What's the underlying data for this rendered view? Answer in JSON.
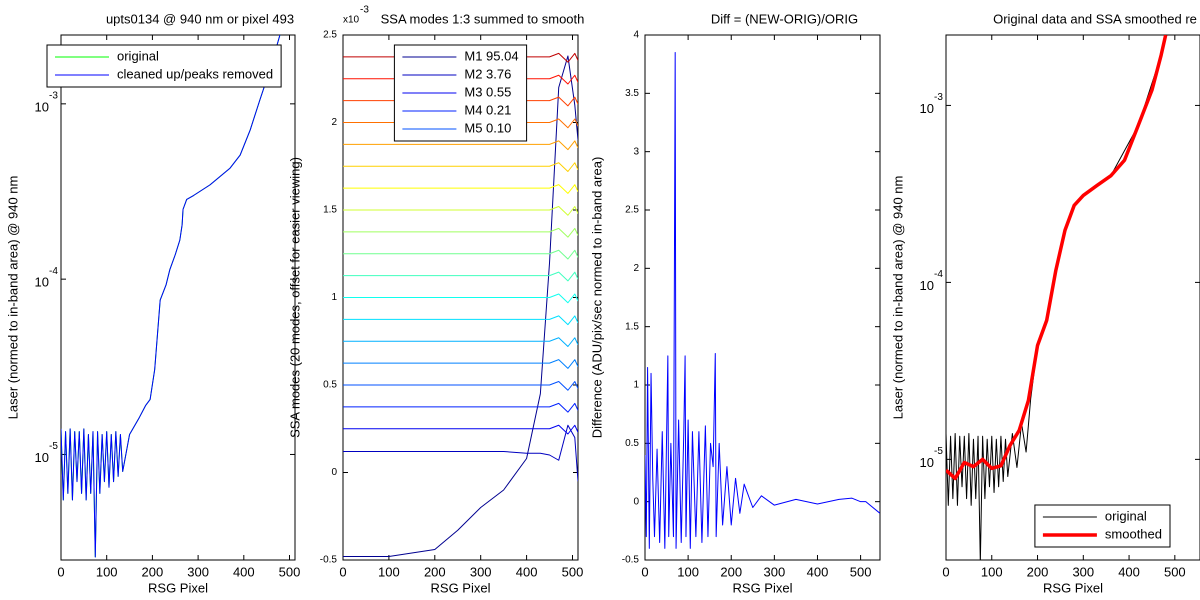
{
  "chart_data": [
    {
      "type": "line",
      "title": "upts0134 @ 940 nm or pixel 493",
      "xlabel": "RSG Pixel",
      "ylabel": "Laser (normed to in-band area) @ 940 nm",
      "ylog": true,
      "legend": "northwest",
      "xlim": [
        0,
        512
      ],
      "xticks": [
        0,
        100,
        200,
        300,
        400,
        500
      ],
      "ylim": [
        2.5e-06,
        0.00247
      ],
      "yticks": [
        {
          "value": 1e-05,
          "label": "10",
          "exponent": "-5"
        },
        {
          "value": 0.0001,
          "label": "10",
          "exponent": "-4"
        },
        {
          "value": 0.001,
          "label": "10",
          "exponent": "-3"
        }
      ],
      "x": [
        0,
        5,
        10,
        15,
        20,
        25,
        30,
        35,
        40,
        45,
        50,
        55,
        60,
        65,
        70,
        75,
        80,
        85,
        90,
        95,
        100,
        105,
        110,
        115,
        120,
        125,
        130,
        135,
        150,
        170,
        185,
        195,
        205,
        217,
        230,
        238,
        250,
        260,
        265,
        267,
        275,
        290,
        326,
        370,
        392,
        414,
        435,
        457,
        479
      ],
      "series": [
        {
          "name": "original",
          "color": "#00ff00",
          "values": [
            1.4e-05,
            5.5e-06,
            1.35e-05,
            6e-06,
            1.4e-05,
            5.5e-06,
            1.35e-05,
            7e-06,
            1.35e-05,
            6e-06,
            1.4e-05,
            5.5e-06,
            1.3e-05,
            6e-06,
            1.35e-05,
            2.6e-06,
            1.35e-05,
            6e-06,
            1.3e-05,
            7e-06,
            1.35e-05,
            6.5e-06,
            1.3e-05,
            7e-06,
            1.35e-05,
            7.5e-06,
            1.3e-05,
            8e-06,
            1.3e-05,
            1.6e-05,
            1.9e-05,
            2.06e-05,
            3.05e-05,
            7.6e-05,
            9.3e-05,
            0.000113,
            0.000138,
            0.000167,
            0.000204,
            0.00025,
            0.000285,
            0.0003,
            0.000345,
            0.00043,
            0.00051,
            0.00071,
            0.00105,
            0.00156,
            0.00247
          ]
        },
        {
          "name": "cleaned up/peaks removed",
          "color": "#0000ff",
          "values": [
            1.4e-05,
            5.5e-06,
            1.35e-05,
            6e-06,
            1.4e-05,
            5.5e-06,
            1.35e-05,
            7e-06,
            1.35e-05,
            6e-06,
            1.4e-05,
            5.5e-06,
            1.3e-05,
            6e-06,
            1.35e-05,
            2.6e-06,
            1.35e-05,
            6e-06,
            1.3e-05,
            7e-06,
            1.35e-05,
            6.5e-06,
            1.3e-05,
            7e-06,
            1.35e-05,
            7.5e-06,
            1.3e-05,
            8e-06,
            1.3e-05,
            1.6e-05,
            1.9e-05,
            2.06e-05,
            3.05e-05,
            7.6e-05,
            9.3e-05,
            0.000113,
            0.000138,
            0.000167,
            0.000204,
            0.00025,
            0.000285,
            0.0003,
            0.000345,
            0.00043,
            0.00051,
            0.00071,
            0.00105,
            0.00156,
            0.00247
          ]
        }
      ]
    },
    {
      "type": "line",
      "title": "SSA modes 1:3 summed to smooth",
      "xlabel": "RSG Pixel",
      "ylabel": "SSA modes (20 modes, offset for easier viewing)",
      "y_multiplier": {
        "label": "x10",
        "exponent": "-3"
      },
      "legend": "north",
      "xlim": [
        0,
        512
      ],
      "xticks": [
        0,
        100,
        200,
        300,
        400,
        500
      ],
      "ylim": [
        -0.5,
        2.5
      ],
      "yticks": [
        -0.5,
        0,
        0.5,
        1,
        1.5,
        2,
        2.5
      ],
      "x": [
        0,
        100,
        200,
        250,
        300,
        350,
        400,
        430,
        450,
        470,
        490,
        505,
        512
      ],
      "series": [
        {
          "name": "M1 95.04",
          "color": "#000090",
          "values": [
            -0.48,
            -0.48,
            -0.44,
            -0.33,
            -0.2,
            -0.1,
            0.08,
            0.45,
            1.2,
            2.2,
            2.38,
            2.1,
            1.9
          ]
        },
        {
          "name": "M2 3.76",
          "color": "#0000c0",
          "values": [
            0.12,
            0.12,
            0.12,
            0.12,
            0.12,
            0.12,
            0.11,
            0.11,
            0.1,
            0.07,
            0.27,
            0.2,
            -0.05
          ]
        },
        {
          "name": "M3 0.55",
          "color": "#0000f0",
          "values": [
            0.25,
            0.25,
            0.25,
            0.25,
            0.25,
            0.25,
            0.25,
            0.25,
            0.25,
            0.27,
            0.22,
            0.27,
            0.23
          ]
        },
        {
          "name": "M4 0.21",
          "color": "#0020ff",
          "values": [
            0.375,
            0.375,
            0.375,
            0.375,
            0.375,
            0.375,
            0.375,
            0.375,
            0.375,
            0.395,
            0.345,
            0.395,
            0.355
          ]
        },
        {
          "name": "M5 0.10",
          "color": "#0050ff",
          "values": [
            0.5,
            0.5,
            0.5,
            0.5,
            0.5,
            0.5,
            0.5,
            0.5,
            0.5,
            0.52,
            0.47,
            0.52,
            0.48
          ]
        },
        {
          "color": "#0080ff",
          "values": [
            0.625,
            0.625,
            0.625,
            0.625,
            0.625,
            0.625,
            0.625,
            0.625,
            0.625,
            0.645,
            0.595,
            0.645,
            0.605
          ]
        },
        {
          "color": "#00b0ff",
          "values": [
            0.75,
            0.75,
            0.75,
            0.75,
            0.75,
            0.75,
            0.75,
            0.75,
            0.75,
            0.77,
            0.72,
            0.77,
            0.73
          ]
        },
        {
          "color": "#00e0ff",
          "values": [
            0.875,
            0.875,
            0.875,
            0.875,
            0.875,
            0.875,
            0.875,
            0.875,
            0.875,
            0.895,
            0.845,
            0.895,
            0.855
          ]
        },
        {
          "color": "#10ffef",
          "values": [
            1,
            1,
            1,
            1,
            1,
            1,
            1,
            1,
            1,
            1.02,
            0.97,
            1.02,
            0.98
          ]
        },
        {
          "color": "#40ffbf",
          "values": [
            1.125,
            1.125,
            1.125,
            1.125,
            1.125,
            1.125,
            1.125,
            1.125,
            1.125,
            1.145,
            1.095,
            1.145,
            1.105
          ]
        },
        {
          "color": "#70ff8f",
          "values": [
            1.25,
            1.25,
            1.25,
            1.25,
            1.25,
            1.25,
            1.25,
            1.25,
            1.25,
            1.27,
            1.22,
            1.27,
            1.23
          ]
        },
        {
          "color": "#a0ff60",
          "values": [
            1.375,
            1.375,
            1.375,
            1.375,
            1.375,
            1.375,
            1.375,
            1.375,
            1.375,
            1.395,
            1.345,
            1.395,
            1.355
          ]
        },
        {
          "color": "#d0ff30",
          "values": [
            1.5,
            1.5,
            1.5,
            1.5,
            1.5,
            1.5,
            1.5,
            1.5,
            1.5,
            1.52,
            1.47,
            1.52,
            1.48
          ]
        },
        {
          "color": "#ffff00",
          "values": [
            1.625,
            1.625,
            1.625,
            1.625,
            1.625,
            1.625,
            1.625,
            1.625,
            1.625,
            1.645,
            1.595,
            1.645,
            1.605
          ]
        },
        {
          "color": "#ffd000",
          "values": [
            1.75,
            1.75,
            1.75,
            1.75,
            1.75,
            1.75,
            1.75,
            1.75,
            1.75,
            1.77,
            1.72,
            1.77,
            1.73
          ]
        },
        {
          "color": "#ffa000",
          "values": [
            1.875,
            1.875,
            1.875,
            1.875,
            1.875,
            1.875,
            1.875,
            1.875,
            1.875,
            1.895,
            1.845,
            1.895,
            1.855
          ]
        },
        {
          "color": "#ff7000",
          "values": [
            2,
            2,
            2,
            2,
            2,
            2,
            2,
            2,
            2,
            2.02,
            1.97,
            2.02,
            1.98
          ]
        },
        {
          "color": "#ff4000",
          "values": [
            2.125,
            2.125,
            2.125,
            2.125,
            2.125,
            2.125,
            2.125,
            2.125,
            2.125,
            2.145,
            2.095,
            2.145,
            2.105
          ]
        },
        {
          "color": "#ff1000",
          "values": [
            2.25,
            2.25,
            2.25,
            2.25,
            2.25,
            2.25,
            2.25,
            2.25,
            2.25,
            2.27,
            2.22,
            2.27,
            2.23
          ]
        },
        {
          "color": "#c00000",
          "values": [
            2.375,
            2.375,
            2.375,
            2.375,
            2.375,
            2.375,
            2.375,
            2.375,
            2.375,
            2.395,
            2.345,
            2.395,
            2.355
          ]
        }
      ]
    },
    {
      "type": "line",
      "title": "Diff = (NEW-ORIG)/ORIG",
      "xlabel": "RSG Pixel",
      "ylabel": "Difference (ADU/pix/sec normed to in-band area)",
      "xlim": [
        0,
        545
      ],
      "xticks": [
        0,
        100,
        200,
        300,
        400,
        500
      ],
      "ylim": [
        -0.5,
        4
      ],
      "yticks": [
        -0.5,
        0,
        0.5,
        1,
        1.5,
        2,
        2.5,
        3,
        3.5,
        4
      ],
      "x": [
        0,
        3,
        6,
        10,
        14,
        18,
        22,
        28,
        34,
        40,
        46,
        53,
        55,
        60,
        66,
        70,
        72,
        78,
        84,
        90,
        93,
        95,
        100,
        105,
        110,
        118,
        125,
        132,
        140,
        146,
        152,
        158,
        163,
        165,
        172,
        180,
        190,
        200,
        210,
        220,
        230,
        250,
        270,
        300,
        350,
        400,
        450,
        480,
        500,
        512,
        545
      ],
      "series": [
        {
          "color": "#0000ff",
          "values": [
            0.4,
            -0.3,
            1.15,
            -0.4,
            1.1,
            0.2,
            -0.3,
            0.45,
            -0.35,
            0.6,
            -0.4,
            1.25,
            -0.3,
            0.5,
            -0.3,
            3.85,
            -0.4,
            0.7,
            -0.35,
            0.6,
            1.25,
            -0.3,
            0.7,
            -0.4,
            0.6,
            -0.3,
            0.6,
            -0.35,
            0.65,
            -0.3,
            0.5,
            0.3,
            1.27,
            -0.3,
            0.5,
            -0.2,
            0.3,
            -0.2,
            0.2,
            -0.1,
            0.15,
            -0.05,
            0.05,
            -0.03,
            0.02,
            -0.02,
            0.02,
            0.03,
            0,
            0,
            -0.1
          ]
        }
      ]
    },
    {
      "type": "line",
      "title": "Original data and SSA smoothed re",
      "xlabel": "RSG Pixel",
      "ylabel": "Laser (normed to in-band area) @ 940 nm",
      "ylog": true,
      "legend": "southeast",
      "xlim": [
        0,
        555
      ],
      "xticks": [
        0,
        100,
        200,
        300,
        400,
        500
      ],
      "ylim": [
        2.7e-06,
        0.0025
      ],
      "yticks": [
        {
          "value": 1e-05,
          "label": "10",
          "exponent": "-5"
        },
        {
          "value": 0.0001,
          "label": "10",
          "exponent": "-4"
        },
        {
          "value": 0.001,
          "label": "10",
          "exponent": "-3"
        }
      ],
      "series": [
        {
          "name": "original",
          "color": "#000000",
          "line_width": 1,
          "x": [
            0,
            5,
            10,
            15,
            20,
            25,
            30,
            35,
            40,
            45,
            50,
            55,
            60,
            65,
            70,
            75,
            80,
            85,
            90,
            95,
            100,
            105,
            110,
            115,
            120,
            125,
            130,
            135,
            145,
            155,
            165,
            175,
            185,
            200,
            220,
            240,
            260,
            280,
            300,
            360,
            420,
            470,
            480
          ],
          "values": [
            1.4e-05,
            5.5e-06,
            1.35e-05,
            6e-06,
            1.4e-05,
            5.5e-06,
            1.35e-05,
            7e-06,
            1.35e-05,
            6e-06,
            1.4e-05,
            5.5e-06,
            1.3e-05,
            6e-06,
            1.35e-05,
            2.6e-06,
            1.35e-05,
            6e-06,
            1.3e-05,
            7e-06,
            1.35e-05,
            6.5e-06,
            1.3e-05,
            7e-06,
            1.35e-05,
            7.5e-06,
            1.3e-05,
            8e-06,
            1.4e-05,
            9e-06,
            1.6e-05,
            1.1e-05,
            2.2e-05,
            4.4e-05,
            6.1e-05,
            0.000117,
            0.000197,
            0.000272,
            0.00031,
            0.0004,
            0.00077,
            0.00192,
            0.0025
          ]
        },
        {
          "name": "smoothed",
          "color": "#ff0000",
          "line_width": 3.5,
          "x": [
            0,
            20,
            40,
            60,
            80,
            100,
            120,
            140,
            160,
            180,
            200,
            220,
            240,
            260,
            280,
            300,
            330,
            360,
            390,
            420,
            450,
            470,
            480
          ],
          "values": [
            8.7e-06,
            7.8e-06,
            9.6e-06,
            9.1e-06,
            1e-05,
            8.9e-06,
            9.2e-06,
            1.2e-05,
            1.46e-05,
            2.15e-05,
            4.4e-05,
            6.1e-05,
            0.000117,
            0.000197,
            0.000272,
            0.00031,
            0.000353,
            0.0004,
            0.00049,
            0.00077,
            0.00122,
            0.00192,
            0.0025
          ]
        }
      ]
    }
  ]
}
